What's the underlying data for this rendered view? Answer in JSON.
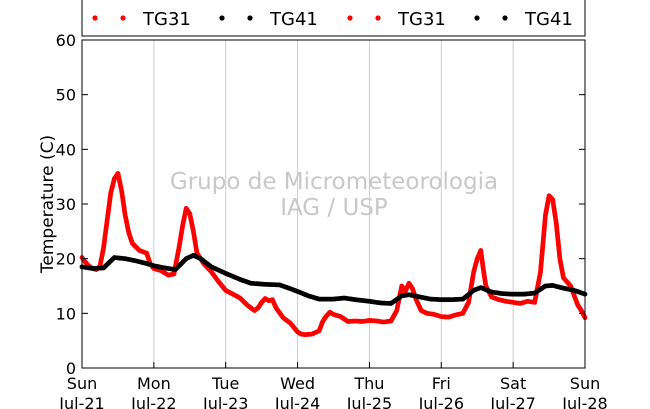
{
  "chart_data": {
    "type": "scatter",
    "title": "",
    "xlabel": "",
    "ylabel": "Temperature (C)",
    "ylim": [
      0,
      60
    ],
    "yticks": [
      0,
      10,
      20,
      30,
      40,
      50,
      60
    ],
    "xlim": [
      0,
      7
    ],
    "grid": "vertical",
    "x_unit": "days",
    "xticks": [
      {
        "x": 0,
        "line1": "Sun",
        "line2": "Jul-21"
      },
      {
        "x": 1,
        "line1": "Mon",
        "line2": "Jul-22"
      },
      {
        "x": 2,
        "line1": "Tue",
        "line2": "Jul-23"
      },
      {
        "x": 3,
        "line1": "Wed",
        "line2": "Jul-24"
      },
      {
        "x": 4,
        "line1": "Thu",
        "line2": "Jul-25"
      },
      {
        "x": 5,
        "line1": "Fri",
        "line2": "Jul-26"
      },
      {
        "x": 6,
        "line1": "Sat",
        "line2": "Jul-27"
      },
      {
        "x": 7,
        "line1": "Sun",
        "line2": "Jul-28"
      }
    ],
    "legend": {
      "placement": "top",
      "entries": [
        {
          "name": "TG31",
          "color": "#ff0000"
        },
        {
          "name": "TG41",
          "color": "#000000"
        },
        {
          "name": "TG31",
          "color": "#ff0000"
        },
        {
          "name": "TG41",
          "color": "#000000"
        }
      ]
    },
    "watermark": [
      "Grupo de Micrometeorologia",
      "IAG / USP"
    ],
    "series": [
      {
        "name": "TG31",
        "color": "#ff0000",
        "points": [
          [
            0.0,
            20.2
          ],
          [
            0.05,
            19.3
          ],
          [
            0.1,
            18.6
          ],
          [
            0.15,
            18.2
          ],
          [
            0.2,
            18.0
          ],
          [
            0.25,
            18.6
          ],
          [
            0.3,
            22.0
          ],
          [
            0.35,
            27.0
          ],
          [
            0.4,
            32.0
          ],
          [
            0.45,
            34.6
          ],
          [
            0.5,
            35.6
          ],
          [
            0.55,
            32.5
          ],
          [
            0.6,
            28.0
          ],
          [
            0.65,
            24.8
          ],
          [
            0.7,
            22.8
          ],
          [
            0.8,
            21.5
          ],
          [
            0.9,
            21.0
          ],
          [
            0.95,
            19.0
          ],
          [
            1.0,
            18.2
          ],
          [
            1.1,
            17.8
          ],
          [
            1.2,
            17.0
          ],
          [
            1.28,
            17.2
          ],
          [
            1.35,
            22.0
          ],
          [
            1.4,
            26.0
          ],
          [
            1.45,
            29.2
          ],
          [
            1.5,
            28.2
          ],
          [
            1.55,
            25.0
          ],
          [
            1.6,
            21.0
          ],
          [
            1.7,
            19.0
          ],
          [
            1.8,
            17.6
          ],
          [
            1.9,
            15.8
          ],
          [
            1.95,
            15.0
          ],
          [
            2.0,
            14.2
          ],
          [
            2.1,
            13.5
          ],
          [
            2.2,
            12.8
          ],
          [
            2.3,
            11.5
          ],
          [
            2.4,
            10.5
          ],
          [
            2.45,
            11.0
          ],
          [
            2.5,
            12.0
          ],
          [
            2.55,
            12.7
          ],
          [
            2.6,
            12.3
          ],
          [
            2.65,
            12.5
          ],
          [
            2.7,
            11.0
          ],
          [
            2.8,
            9.2
          ],
          [
            2.9,
            8.2
          ],
          [
            3.0,
            6.6
          ],
          [
            3.05,
            6.2
          ],
          [
            3.1,
            6.1
          ],
          [
            3.2,
            6.2
          ],
          [
            3.3,
            6.8
          ],
          [
            3.35,
            8.5
          ],
          [
            3.4,
            9.5
          ],
          [
            3.45,
            10.2
          ],
          [
            3.5,
            9.8
          ],
          [
            3.6,
            9.4
          ],
          [
            3.7,
            8.5
          ],
          [
            3.8,
            8.6
          ],
          [
            3.9,
            8.5
          ],
          [
            4.0,
            8.7
          ],
          [
            4.1,
            8.6
          ],
          [
            4.2,
            8.4
          ],
          [
            4.3,
            8.6
          ],
          [
            4.38,
            10.5
          ],
          [
            4.45,
            15.0
          ],
          [
            4.5,
            14.0
          ],
          [
            4.55,
            15.5
          ],
          [
            4.6,
            14.5
          ],
          [
            4.65,
            12.5
          ],
          [
            4.72,
            10.5
          ],
          [
            4.8,
            10.0
          ],
          [
            4.9,
            9.8
          ],
          [
            5.0,
            9.4
          ],
          [
            5.1,
            9.3
          ],
          [
            5.2,
            9.7
          ],
          [
            5.3,
            10.0
          ],
          [
            5.38,
            12.0
          ],
          [
            5.45,
            17.5
          ],
          [
            5.5,
            20.0
          ],
          [
            5.55,
            21.5
          ],
          [
            5.58,
            18.5
          ],
          [
            5.62,
            15.0
          ],
          [
            5.7,
            13.0
          ],
          [
            5.8,
            12.5
          ],
          [
            5.9,
            12.2
          ],
          [
            6.0,
            12.0
          ],
          [
            6.1,
            11.8
          ],
          [
            6.2,
            12.2
          ],
          [
            6.3,
            12.0
          ],
          [
            6.38,
            17.5
          ],
          [
            6.45,
            28.0
          ],
          [
            6.5,
            31.5
          ],
          [
            6.55,
            30.8
          ],
          [
            6.6,
            26.5
          ],
          [
            6.65,
            20.0
          ],
          [
            6.7,
            16.5
          ],
          [
            6.8,
            15.0
          ],
          [
            6.9,
            11.5
          ],
          [
            6.95,
            10.5
          ],
          [
            7.0,
            9.2
          ]
        ]
      },
      {
        "name": "TG41",
        "color": "#000000",
        "points": [
          [
            0.0,
            18.5
          ],
          [
            0.15,
            18.2
          ],
          [
            0.3,
            18.3
          ],
          [
            0.45,
            20.2
          ],
          [
            0.6,
            20.0
          ],
          [
            0.75,
            19.6
          ],
          [
            0.9,
            19.1
          ],
          [
            1.0,
            18.7
          ],
          [
            1.15,
            18.3
          ],
          [
            1.3,
            18.0
          ],
          [
            1.45,
            20.0
          ],
          [
            1.55,
            20.6
          ],
          [
            1.65,
            20.0
          ],
          [
            1.8,
            18.5
          ],
          [
            2.0,
            17.3
          ],
          [
            2.2,
            16.2
          ],
          [
            2.35,
            15.5
          ],
          [
            2.55,
            15.3
          ],
          [
            2.75,
            15.2
          ],
          [
            2.9,
            14.5
          ],
          [
            3.0,
            14.0
          ],
          [
            3.15,
            13.2
          ],
          [
            3.3,
            12.6
          ],
          [
            3.5,
            12.6
          ],
          [
            3.65,
            12.8
          ],
          [
            3.8,
            12.5
          ],
          [
            4.0,
            12.2
          ],
          [
            4.15,
            11.9
          ],
          [
            4.3,
            11.8
          ],
          [
            4.45,
            13.2
          ],
          [
            4.55,
            13.4
          ],
          [
            4.7,
            13.0
          ],
          [
            4.85,
            12.6
          ],
          [
            5.0,
            12.5
          ],
          [
            5.15,
            12.5
          ],
          [
            5.3,
            12.6
          ],
          [
            5.45,
            14.2
          ],
          [
            5.55,
            14.7
          ],
          [
            5.7,
            13.9
          ],
          [
            5.85,
            13.6
          ],
          [
            6.0,
            13.5
          ],
          [
            6.15,
            13.5
          ],
          [
            6.3,
            13.7
          ],
          [
            6.45,
            15.0
          ],
          [
            6.55,
            15.1
          ],
          [
            6.7,
            14.6
          ],
          [
            6.85,
            14.2
          ],
          [
            7.0,
            13.5
          ]
        ]
      }
    ]
  }
}
